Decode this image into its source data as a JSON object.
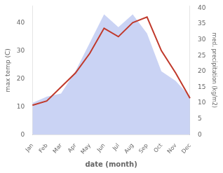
{
  "chart_data": {
    "type": "line",
    "xlabel": "date (month)",
    "ylabel": "max temp (C)",
    "y2label": "med. precipitation (kg/m2)",
    "categories": [
      "Jan",
      "Feb",
      "Mar",
      "Apr",
      "May",
      "Jun",
      "Jul",
      "Aug",
      "Sep",
      "Oct",
      "Nov",
      "Dec"
    ],
    "series": [
      {
        "type": "area",
        "axis": "y2",
        "color": "#b8c4f0",
        "values": [
          10,
          12,
          13,
          20,
          29,
          38,
          34,
          38,
          32,
          20,
          17,
          12
        ]
      },
      {
        "type": "line",
        "color": "#c0392b",
        "values": [
          10.5,
          12,
          17,
          22,
          29,
          38,
          35,
          40,
          42,
          30,
          22,
          13
        ]
      }
    ],
    "ylim": [
      0,
      46
    ],
    "yticks": [
      0,
      10,
      20,
      30,
      40
    ],
    "y2lim": [
      0,
      40.7
    ],
    "y2ticks": [
      0,
      5,
      10,
      15,
      20,
      25,
      30,
      35,
      40
    ],
    "grid": false
  }
}
